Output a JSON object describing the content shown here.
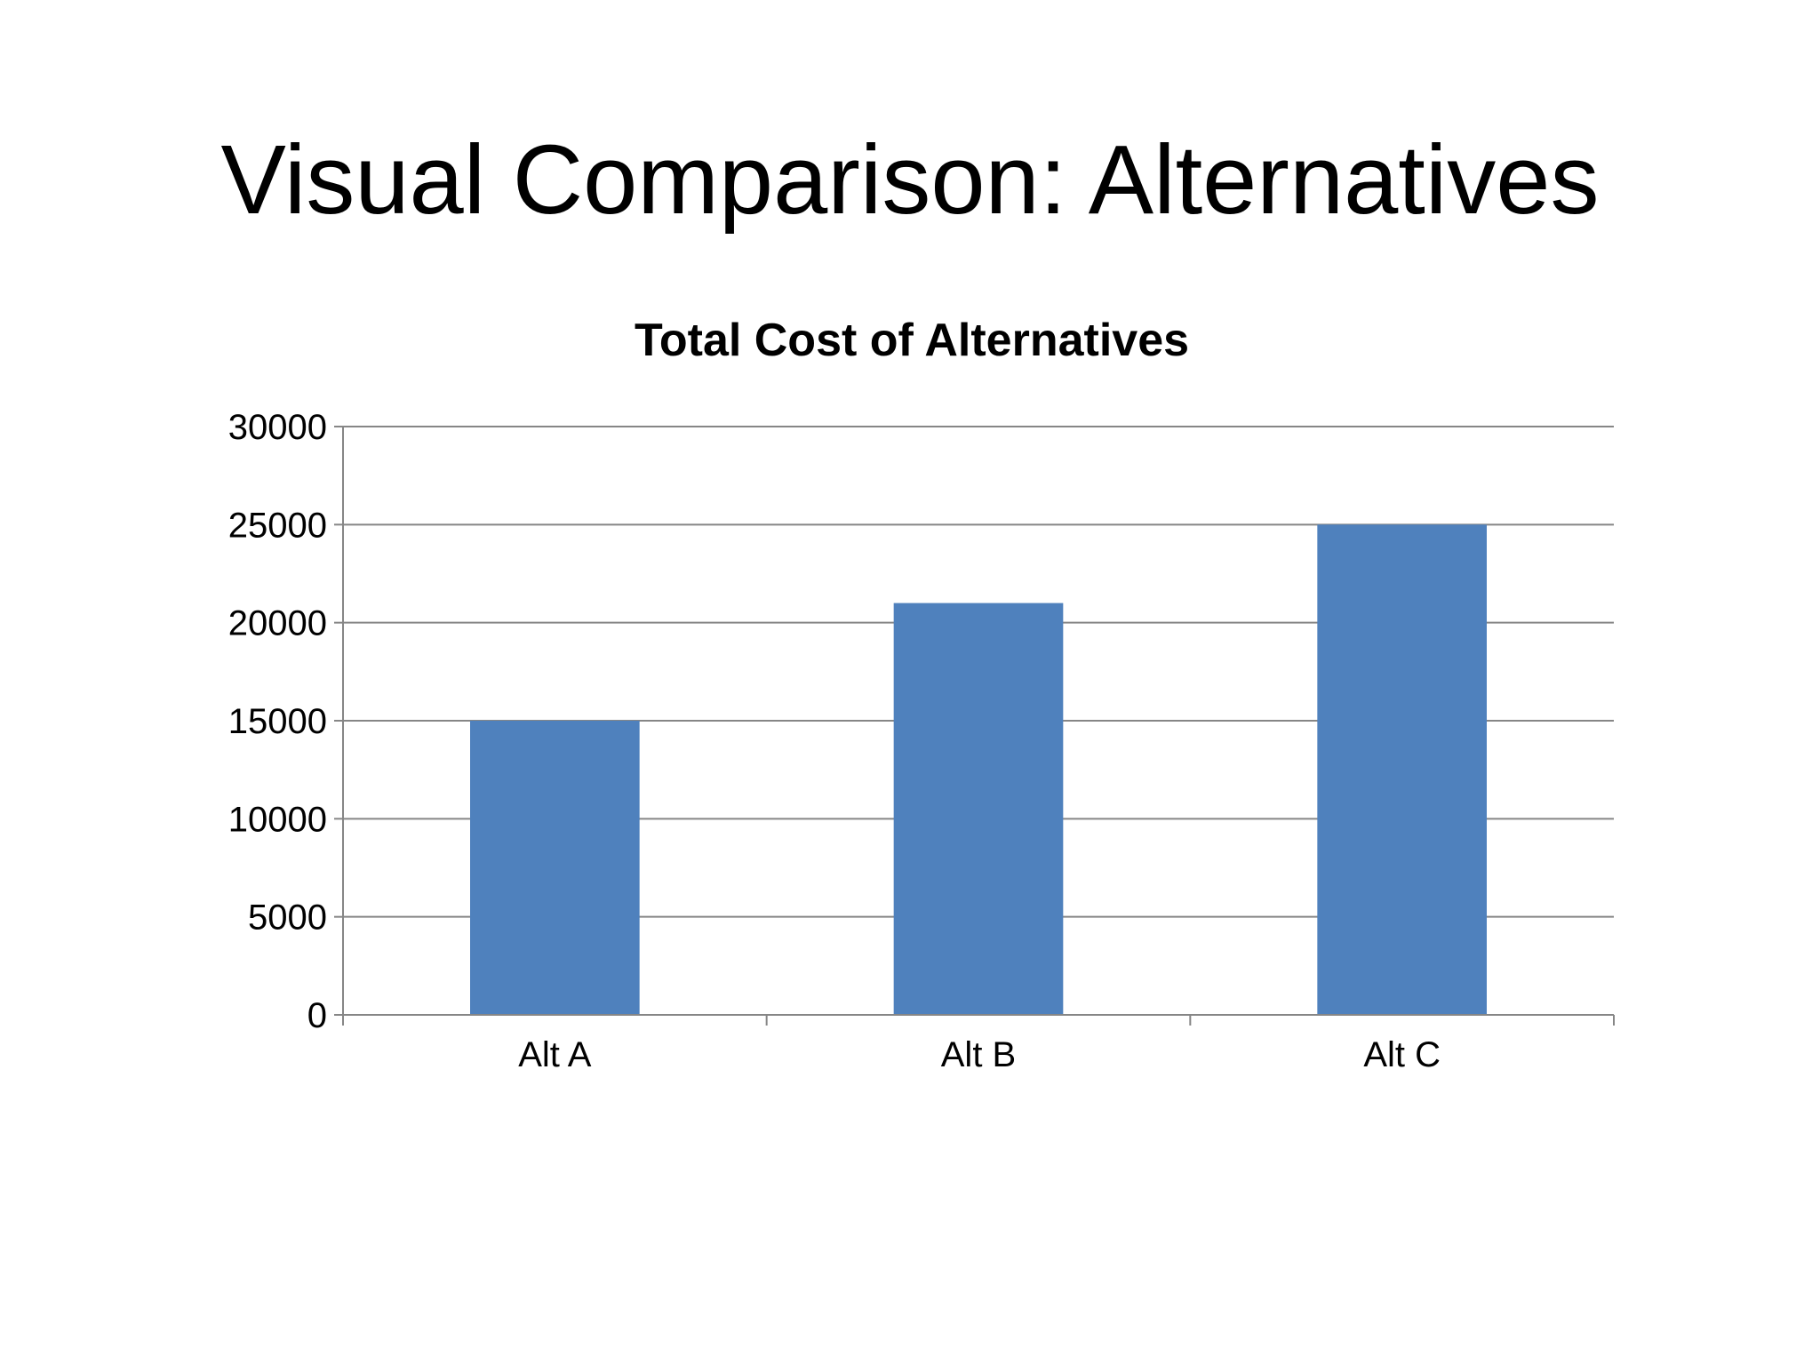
{
  "slide": {
    "title": "Visual Comparison: Alternatives"
  },
  "colors": {
    "bar": "#4F81BD",
    "gridline": "#868686",
    "axis": "#868686"
  },
  "chart_data": {
    "type": "bar",
    "title": "Total Cost of Alternatives",
    "categories": [
      "Alt A",
      "Alt B",
      "Alt C"
    ],
    "values": [
      15000,
      21000,
      25000
    ],
    "xlabel": "",
    "ylabel": "",
    "ylim": [
      0,
      30000
    ],
    "yticks": [
      0,
      5000,
      10000,
      15000,
      20000,
      25000,
      30000
    ],
    "grid": true,
    "legend": "none"
  }
}
